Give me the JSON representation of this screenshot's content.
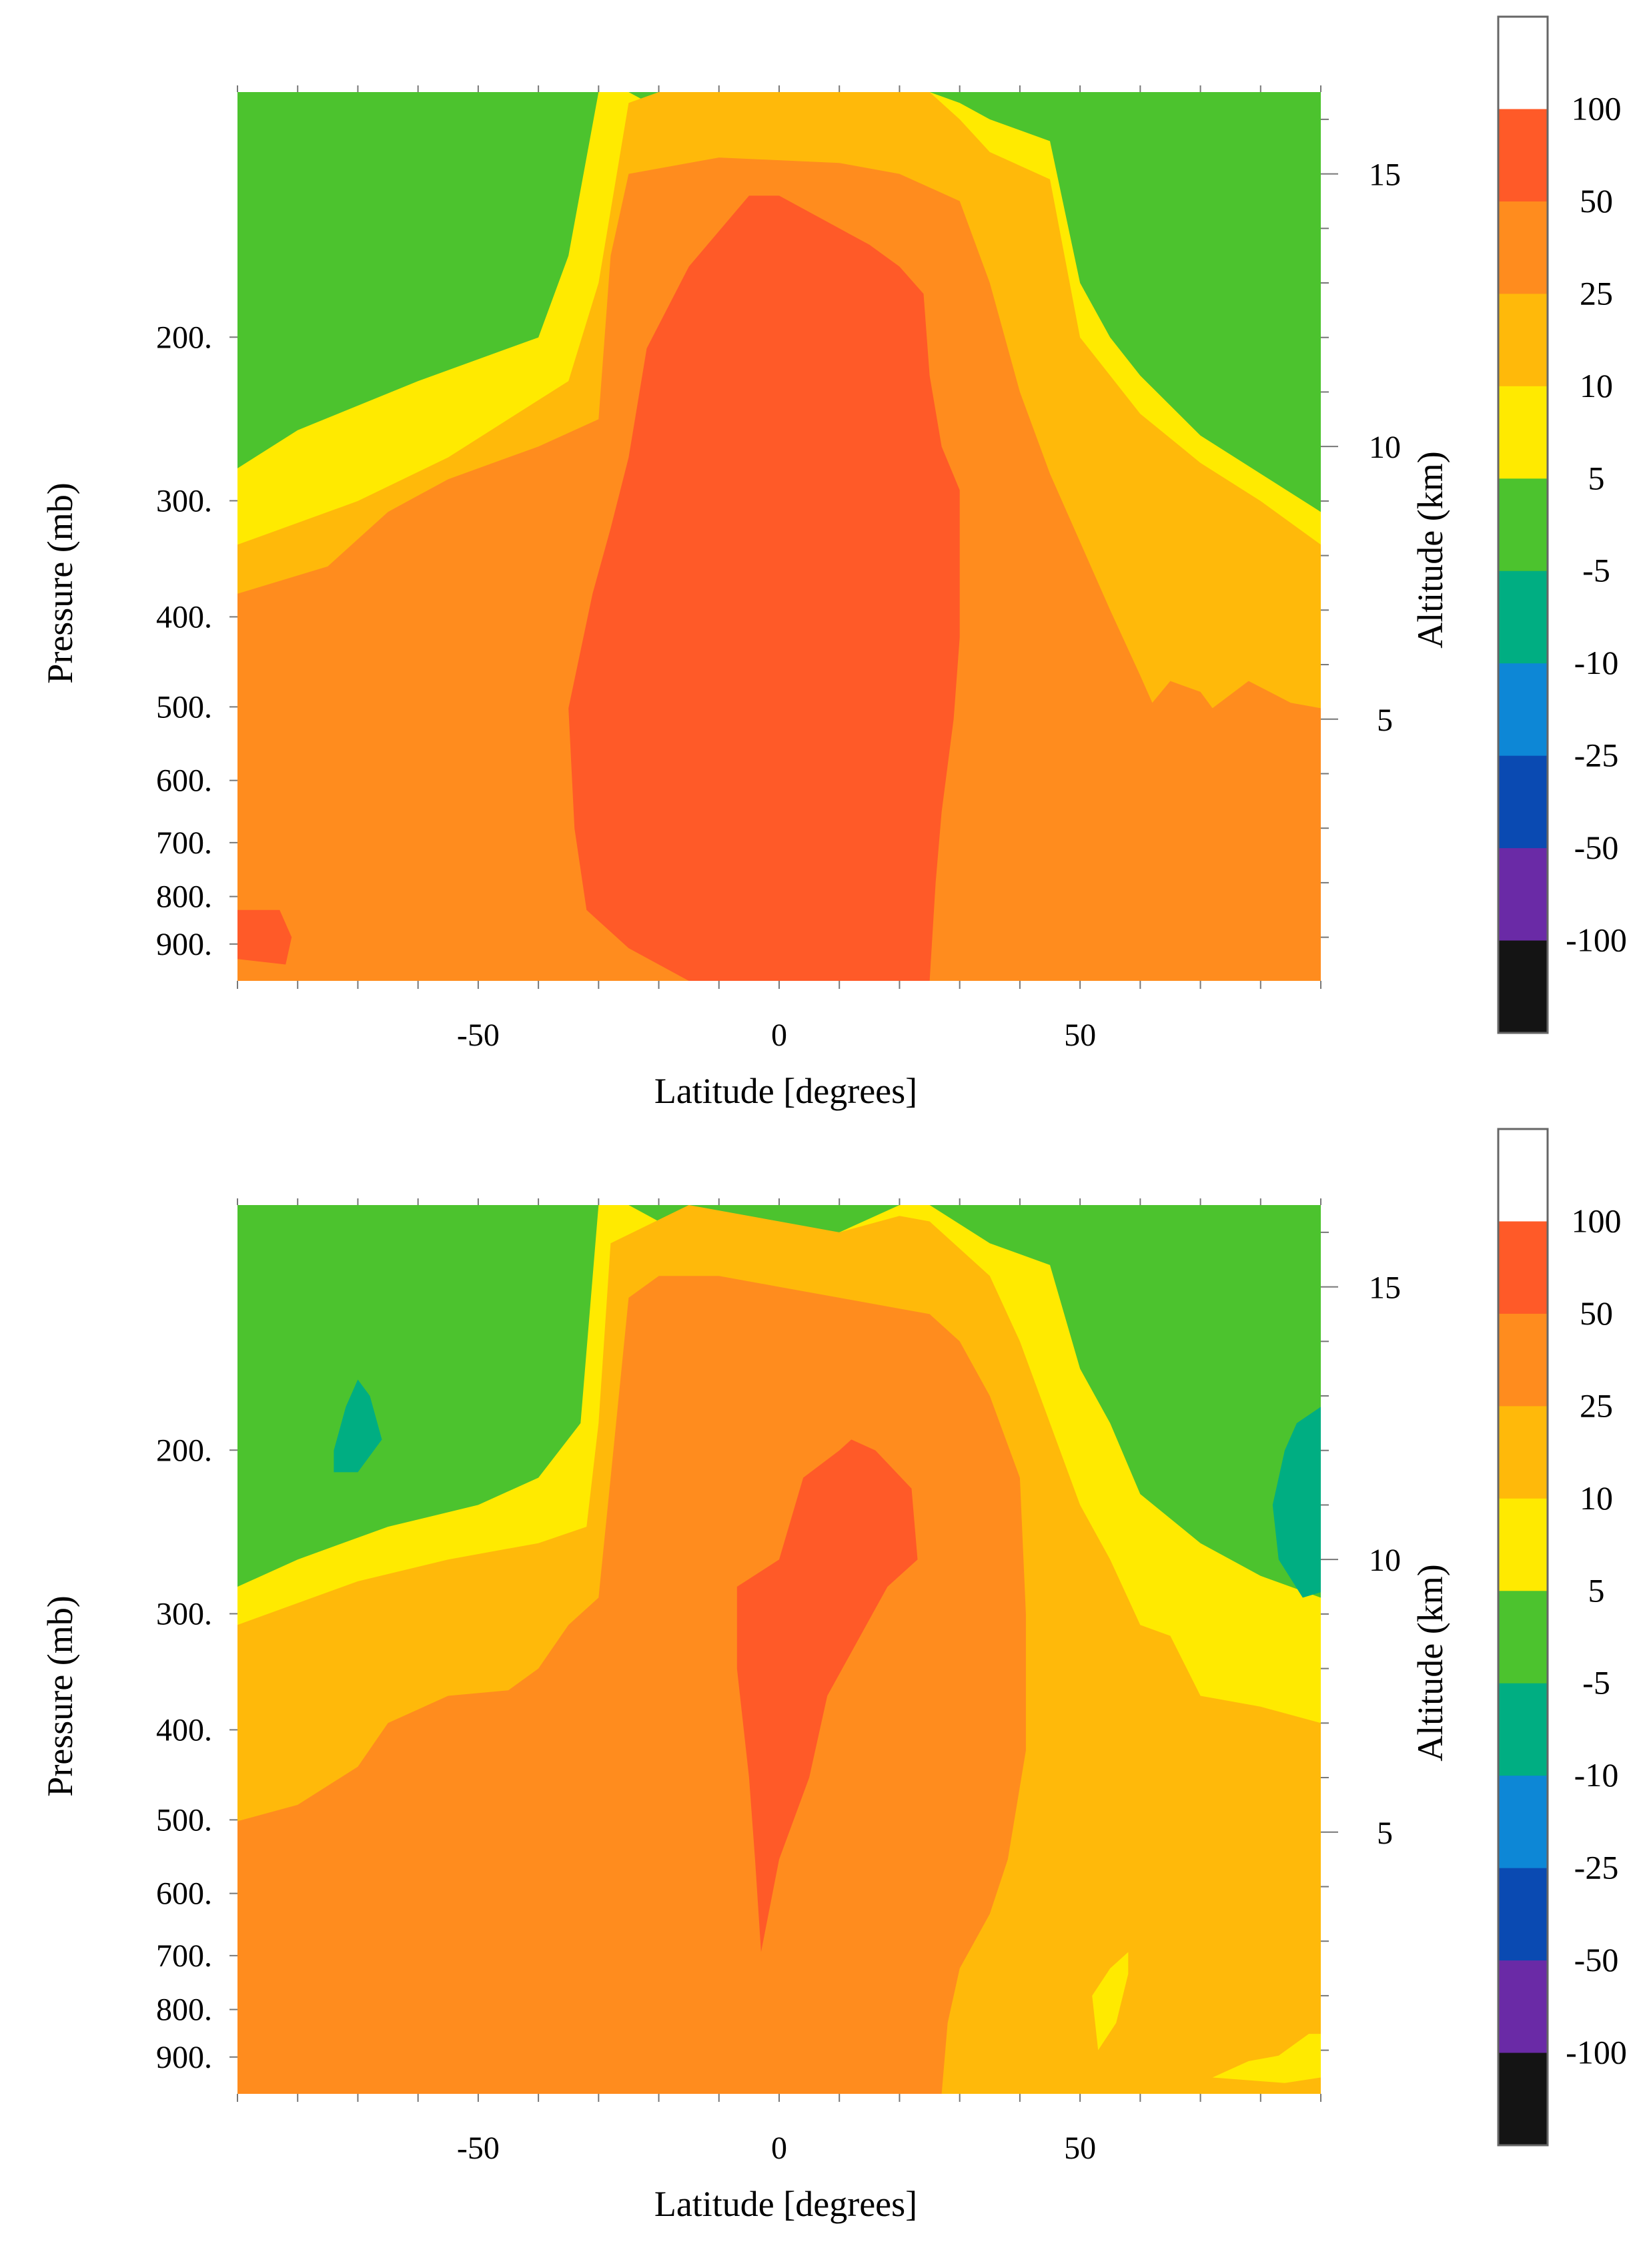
{
  "chart_data": [
    {
      "type": "heatmap",
      "subtype": "filled-contour",
      "title": "",
      "xlabel": "Latitude [degrees]",
      "ylabel": "Pressure (mb)",
      "y2label": "Altitude (km)",
      "xlim": [
        -90,
        90
      ],
      "x_ticks": [
        -50,
        0,
        50
      ],
      "x_tick_labels": [
        "-50",
        "0",
        "50"
      ],
      "pressure_ticks": [
        200,
        300,
        400,
        500,
        600,
        700,
        800,
        900
      ],
      "pressure_tick_labels": [
        "200.",
        "300.",
        "400.",
        "500.",
        "600.",
        "700.",
        "800.",
        "900."
      ],
      "altitude_ticks": [
        5,
        10,
        15
      ],
      "altitude_tick_labels": [
        "5",
        "10",
        "15"
      ],
      "y_scale": "log-pressure",
      "ylim_altitude_km": [
        0.2,
        16.5
      ],
      "grid": false,
      "contours": [
        {
          "level": "5..10",
          "region": "polygon",
          "latlon": [
            [
              -90,
              9.6
            ],
            [
              -80,
              10.3
            ],
            [
              -60,
              11.2
            ],
            [
              -40,
              12.0
            ],
            [
              -35,
              13.5
            ],
            [
              -30,
              16.5
            ],
            [
              -25,
              16.5
            ],
            [
              -20,
              16.2
            ],
            [
              0,
              16.2
            ],
            [
              20,
              16.5
            ],
            [
              25,
              16.5
            ],
            [
              30,
              16.3
            ],
            [
              35,
              16.0
            ],
            [
              45,
              15.6
            ],
            [
              50,
              13.0
            ],
            [
              55,
              12.0
            ],
            [
              60,
              11.3
            ],
            [
              70,
              10.2
            ],
            [
              80,
              9.5
            ],
            [
              90,
              8.8
            ],
            [
              90,
              0.2
            ],
            [
              -90,
              0.2
            ]
          ]
        },
        {
          "level": "10..25",
          "region": "polygon",
          "latlon": [
            [
              -90,
              8.2
            ],
            [
              -80,
              8.6
            ],
            [
              -70,
              9.0
            ],
            [
              -55,
              9.8
            ],
            [
              -45,
              10.5
            ],
            [
              -35,
              11.2
            ],
            [
              -30,
              13.0
            ],
            [
              -25,
              16.3
            ],
            [
              -20,
              16.5
            ],
            [
              20,
              16.5
            ],
            [
              25,
              16.5
            ],
            [
              30,
              16.0
            ],
            [
              35,
              15.4
            ],
            [
              45,
              14.9
            ],
            [
              50,
              12.0
            ],
            [
              55,
              11.3
            ],
            [
              60,
              10.6
            ],
            [
              70,
              9.7
            ],
            [
              80,
              9.0
            ],
            [
              90,
              8.2
            ],
            [
              90,
              0.2
            ],
            [
              -90,
              0.2
            ]
          ]
        },
        {
          "level": "25..50",
          "region": "polygon",
          "latlon": [
            [
              -90,
              7.3
            ],
            [
              -75,
              7.8
            ],
            [
              -65,
              8.8
            ],
            [
              -55,
              9.4
            ],
            [
              -40,
              10.0
            ],
            [
              -30,
              10.5
            ],
            [
              -28,
              13.5
            ],
            [
              -25,
              15.0
            ],
            [
              -10,
              15.3
            ],
            [
              10,
              15.2
            ],
            [
              20,
              15.0
            ],
            [
              30,
              14.5
            ],
            [
              35,
              13.0
            ],
            [
              40,
              11.0
            ],
            [
              45,
              9.5
            ],
            [
              55,
              7.0
            ],
            [
              60,
              5.8
            ],
            [
              62,
              5.3
            ],
            [
              65,
              5.7
            ],
            [
              70,
              5.5
            ],
            [
              72,
              5.2
            ],
            [
              78,
              5.7
            ],
            [
              85,
              5.3
            ],
            [
              90,
              5.2
            ],
            [
              90,
              0.2
            ],
            [
              -90,
              0.2
            ]
          ]
        },
        {
          "level": "50..100",
          "region": "polygon",
          "latlon": [
            [
              -35,
              5.2
            ],
            [
              -31,
              7.3
            ],
            [
              -28,
              8.5
            ],
            [
              -25,
              9.8
            ],
            [
              -22,
              11.8
            ],
            [
              -15,
              13.3
            ],
            [
              -5,
              14.6
            ],
            [
              0,
              14.6
            ],
            [
              10,
              14.0
            ],
            [
              15,
              13.7
            ],
            [
              20,
              13.3
            ],
            [
              24,
              12.8
            ],
            [
              25,
              11.3
            ],
            [
              27,
              10.0
            ],
            [
              30,
              9.2
            ],
            [
              30,
              6.5
            ],
            [
              29,
              5.0
            ],
            [
              27,
              3.3
            ],
            [
              26,
              2.0
            ],
            [
              25,
              0.2
            ],
            [
              -15,
              0.2
            ],
            [
              -25,
              0.8
            ],
            [
              -32,
              1.5
            ],
            [
              -34,
              3.0
            ]
          ]
        },
        {
          "level": "50..100",
          "region": "polygon",
          "latlon": [
            [
              -90,
              1.5
            ],
            [
              -83,
              1.5
            ],
            [
              -81,
              1.0
            ],
            [
              -82,
              0.5
            ],
            [
              -90,
              0.6
            ]
          ]
        }
      ]
    },
    {
      "type": "heatmap",
      "subtype": "filled-contour",
      "title": "",
      "xlabel": "Latitude [degrees]",
      "ylabel": "Pressure (mb)",
      "y2label": "Altitude (km)",
      "xlim": [
        -90,
        90
      ],
      "x_ticks": [
        -50,
        0,
        50
      ],
      "x_tick_labels": [
        "-50",
        "0",
        "50"
      ],
      "pressure_ticks": [
        200,
        300,
        400,
        500,
        600,
        700,
        800,
        900
      ],
      "pressure_tick_labels": [
        "200.",
        "300.",
        "400.",
        "500.",
        "600.",
        "700.",
        "800.",
        "900."
      ],
      "altitude_ticks": [
        5,
        10,
        15
      ],
      "altitude_tick_labels": [
        "5",
        "10",
        "15"
      ],
      "y_scale": "log-pressure",
      "ylim_altitude_km": [
        0.2,
        16.5
      ],
      "grid": false,
      "contours": [
        {
          "level": "5..10",
          "region": "polygon",
          "latlon": [
            [
              -90,
              9.5
            ],
            [
              -80,
              10.0
            ],
            [
              -65,
              10.6
            ],
            [
              -50,
              11.0
            ],
            [
              -40,
              11.5
            ],
            [
              -33,
              12.5
            ],
            [
              -30,
              16.5
            ],
            [
              -25,
              16.5
            ],
            [
              -20,
              16.2
            ],
            [
              -10,
              16.2
            ],
            [
              0,
              15.9
            ],
            [
              10,
              16.0
            ],
            [
              20,
              16.5
            ],
            [
              25,
              16.5
            ],
            [
              35,
              15.8
            ],
            [
              45,
              15.4
            ],
            [
              50,
              13.5
            ],
            [
              55,
              12.5
            ],
            [
              60,
              11.2
            ],
            [
              70,
              10.3
            ],
            [
              80,
              9.7
            ],
            [
              90,
              9.3
            ],
            [
              90,
              0.2
            ],
            [
              -90,
              0.2
            ]
          ]
        },
        {
          "level": "10..25",
          "region": "polygon",
          "latlon": [
            [
              -90,
              8.8
            ],
            [
              -80,
              9.2
            ],
            [
              -70,
              9.6
            ],
            [
              -55,
              10.0
            ],
            [
              -40,
              10.3
            ],
            [
              -32,
              10.6
            ],
            [
              -30,
              12.5
            ],
            [
              -28,
              15.8
            ],
            [
              -15,
              16.5
            ],
            [
              0,
              16.2
            ],
            [
              10,
              16.0
            ],
            [
              20,
              16.3
            ],
            [
              25,
              16.2
            ],
            [
              35,
              15.2
            ],
            [
              40,
              14.0
            ],
            [
              50,
              11.0
            ],
            [
              55,
              10.0
            ],
            [
              60,
              8.8
            ],
            [
              65,
              8.6
            ],
            [
              70,
              7.5
            ],
            [
              80,
              7.3
            ],
            [
              90,
              7.0
            ],
            [
              90,
              0.2
            ],
            [
              -90,
              0.2
            ]
          ]
        },
        {
          "level": "25..50",
          "region": "polygon",
          "latlon": [
            [
              -90,
              5.2
            ],
            [
              -80,
              5.5
            ],
            [
              -70,
              6.2
            ],
            [
              -65,
              7.0
            ],
            [
              -55,
              7.5
            ],
            [
              -45,
              7.6
            ],
            [
              -40,
              8.0
            ],
            [
              -35,
              8.8
            ],
            [
              -30,
              9.3
            ],
            [
              -28,
              11.5
            ],
            [
              -25,
              14.8
            ],
            [
              -20,
              15.2
            ],
            [
              -10,
              15.2
            ],
            [
              0,
              15.0
            ],
            [
              10,
              14.8
            ],
            [
              20,
              14.6
            ],
            [
              25,
              14.5
            ],
            [
              30,
              14.0
            ],
            [
              35,
              13.0
            ],
            [
              40,
              11.5
            ],
            [
              41,
              9.0
            ],
            [
              41,
              6.5
            ],
            [
              38,
              4.5
            ],
            [
              35,
              3.5
            ],
            [
              30,
              2.5
            ],
            [
              28,
              1.5
            ],
            [
              27,
              0.2
            ],
            [
              -90,
              0.2
            ]
          ]
        },
        {
          "level": "50..100",
          "region": "polygon",
          "latlon": [
            [
              -3,
              2.8
            ],
            [
              0,
              4.5
            ],
            [
              5,
              6.0
            ],
            [
              8,
              7.5
            ],
            [
              13,
              8.5
            ],
            [
              18,
              9.5
            ],
            [
              23,
              10.0
            ],
            [
              22,
              11.3
            ],
            [
              16,
              12.0
            ],
            [
              12,
              12.2
            ],
            [
              10,
              12.0
            ],
            [
              4,
              11.5
            ],
            [
              0,
              10.0
            ],
            [
              -7,
              9.5
            ],
            [
              -7,
              8.0
            ],
            [
              -5,
              6.0
            ],
            [
              -4,
              4.5
            ]
          ]
        },
        {
          "level": "-10..-5",
          "region": "polygon",
          "latlon": [
            [
              -74,
              12.0
            ],
            [
              -72,
              12.8
            ],
            [
              -70,
              13.3
            ],
            [
              -68,
              13.0
            ],
            [
              -66,
              12.2
            ],
            [
              -70,
              11.6
            ],
            [
              -74,
              11.6
            ]
          ]
        },
        {
          "level": "-10..-5",
          "region": "polygon",
          "latlon": [
            [
              90,
              12.8
            ],
            [
              86,
              12.5
            ],
            [
              84,
              12.0
            ],
            [
              82,
              11.0
            ],
            [
              83,
              10.0
            ],
            [
              87,
              9.3
            ],
            [
              90,
              9.4
            ]
          ]
        },
        {
          "level": "5..10",
          "region": "polygon",
          "latlon": [
            [
              53,
              1.0
            ],
            [
              56,
              1.5
            ],
            [
              58,
              2.4
            ],
            [
              58,
              2.8
            ],
            [
              55,
              2.5
            ],
            [
              52,
              2.0
            ]
          ]
        },
        {
          "level": "5..10",
          "region": "polygon",
          "latlon": [
            [
              72,
              0.5
            ],
            [
              78,
              0.8
            ],
            [
              83,
              0.9
            ],
            [
              88,
              1.3
            ],
            [
              90,
              1.3
            ],
            [
              90,
              0.5
            ],
            [
              84,
              0.4
            ]
          ]
        }
      ]
    }
  ],
  "colorbar": {
    "levels": [
      {
        "label": "100",
        "color": "#ffffff"
      },
      {
        "label": "50",
        "color": "#ff5a28"
      },
      {
        "label": "25",
        "color": "#ff8c1e"
      },
      {
        "label": "10",
        "color": "#ffb90a"
      },
      {
        "label": "5",
        "color": "#ffea00"
      },
      {
        "label": "-5",
        "color": "#4cc32e"
      },
      {
        "label": "-10",
        "color": "#00ae82"
      },
      {
        "label": "-25",
        "color": "#0d87d6"
      },
      {
        "label": "-50",
        "color": "#0a4ab2"
      },
      {
        "label": "-100",
        "color": "#6a2aa6"
      },
      {
        "label": "",
        "color": "#141414"
      }
    ],
    "background_color": "#4cc32e"
  }
}
